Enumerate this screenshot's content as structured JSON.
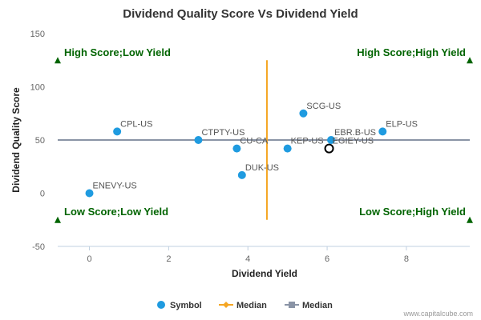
{
  "colors": {
    "point": "#1f9be0",
    "median_v": "#f5a623",
    "median_h": "#8a94a6",
    "quadrant": "#006400",
    "highlight": "#000000",
    "axis": "#c0d0e0",
    "background": "#ffffff"
  },
  "chart_data": {
    "type": "scatter",
    "title": "Dividend Quality Score Vs Dividend Yield",
    "xlabel": "Dividend Yield",
    "ylabel": "Dividend Quality Score",
    "xlim": [
      -0.8,
      9.6
    ],
    "ylim": [
      -50,
      150
    ],
    "xticks": [
      0,
      2,
      4,
      6,
      8
    ],
    "yticks": [
      -50,
      0,
      50,
      100,
      150
    ],
    "grid": false,
    "points": [
      {
        "label": "ENEVY-US",
        "x": 0.0,
        "y": 0
      },
      {
        "label": "CPL-US",
        "x": 0.7,
        "y": 58
      },
      {
        "label": "CTPTY-US",
        "x": 2.75,
        "y": 50
      },
      {
        "label": "CU-CA",
        "x": 3.72,
        "y": 42
      },
      {
        "label": "DUK-US",
        "x": 3.85,
        "y": 17
      },
      {
        "label": "SCG-US",
        "x": 5.4,
        "y": 75
      },
      {
        "label": "KEP-US",
        "x": 5.0,
        "y": 42
      },
      {
        "label": "EBR.B-US",
        "x": 6.1,
        "y": 50
      },
      {
        "label": "ELP-US",
        "x": 7.4,
        "y": 58
      }
    ],
    "highlight": {
      "label": "EGIEY-US",
      "x": 6.05,
      "y": 42
    },
    "median_x": 4.48,
    "median_y": 50,
    "median_x_range": [
      -25,
      125
    ],
    "quadrant_labels": {
      "top_left": "High Score;Low Yield",
      "top_right": "High Score;High Yield",
      "bottom_left": "Low Score;Low Yield",
      "bottom_right": "Low Score;High Yield"
    },
    "quadrant_markers": [
      {
        "x": -0.8,
        "y": 125
      },
      {
        "x": 9.6,
        "y": 125
      },
      {
        "x": -0.8,
        "y": -25
      },
      {
        "x": 9.6,
        "y": -25
      }
    ],
    "legend": [
      "Symbol",
      "Median",
      "Median"
    ],
    "legend_position": "bottom-center"
  },
  "credit": "www.capitalcube.com"
}
